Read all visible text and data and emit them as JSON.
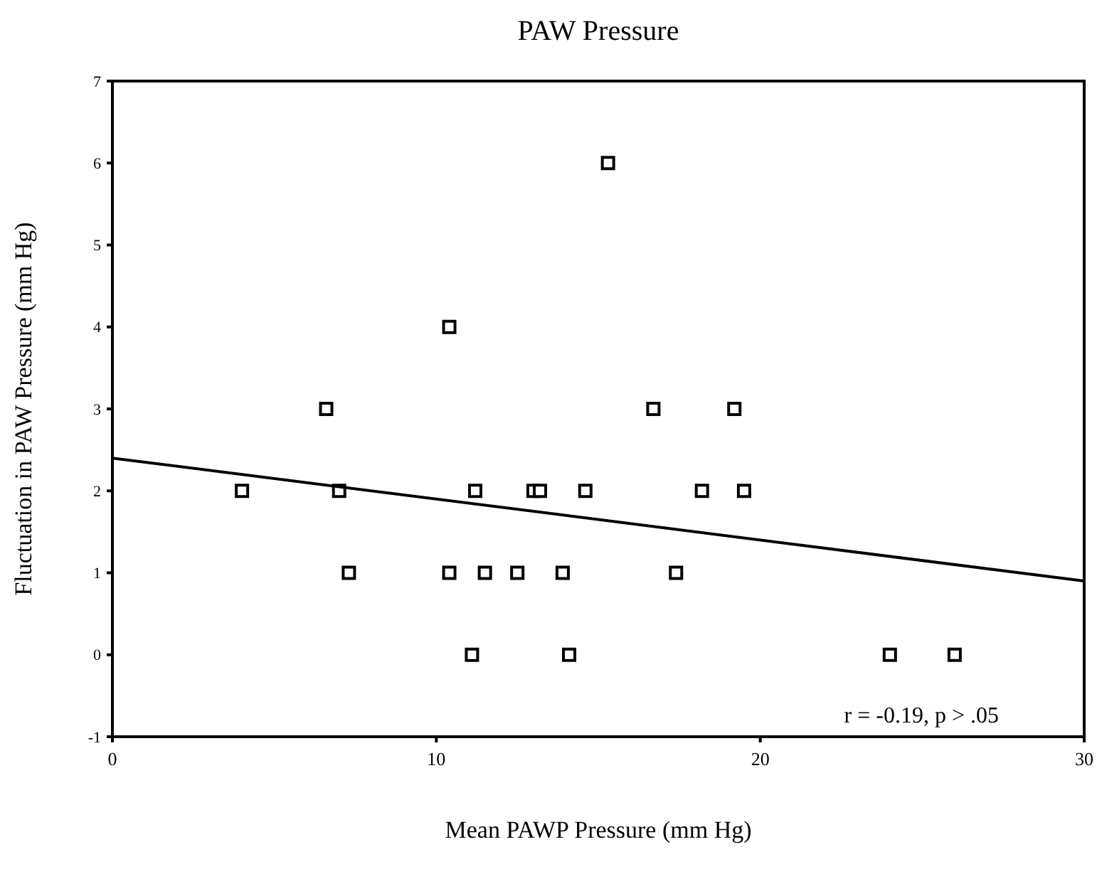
{
  "chart_data": {
    "type": "scatter",
    "title": "PAW Pressure",
    "xlabel": "Mean PAWP Pressure (mm Hg)",
    "ylabel": "Fluctuation in PAW Pressure (mm Hg)",
    "xlim": [
      0,
      30
    ],
    "xticks": [
      0,
      10,
      20,
      30
    ],
    "ylim": [
      -1,
      7
    ],
    "yticks": [
      -1,
      0,
      1,
      2,
      3,
      4,
      5,
      6,
      7
    ],
    "grid": false,
    "marker": "square",
    "series": [
      {
        "color": "#000000",
        "x": [
          4.0,
          6.6,
          7.0,
          7.3,
          10.4,
          10.4,
          11.2,
          11.1,
          11.5,
          12.5,
          13.0,
          13.2,
          13.9,
          14.1,
          14.6,
          15.3,
          16.7,
          17.4,
          18.2,
          19.2,
          19.5,
          24.0,
          26.0
        ],
        "values": [
          2,
          3,
          2,
          1,
          4,
          1,
          2,
          0,
          1,
          1,
          2,
          2,
          1,
          0,
          2,
          6,
          3,
          1,
          2,
          3,
          2,
          0,
          0
        ]
      },
      {
        "type": "line",
        "color": "#000000",
        "x": [
          0,
          30
        ],
        "values": [
          2.4,
          0.9
        ],
        "marker": "none"
      }
    ],
    "annotations": [
      "r = -0.19, p > .05"
    ]
  }
}
